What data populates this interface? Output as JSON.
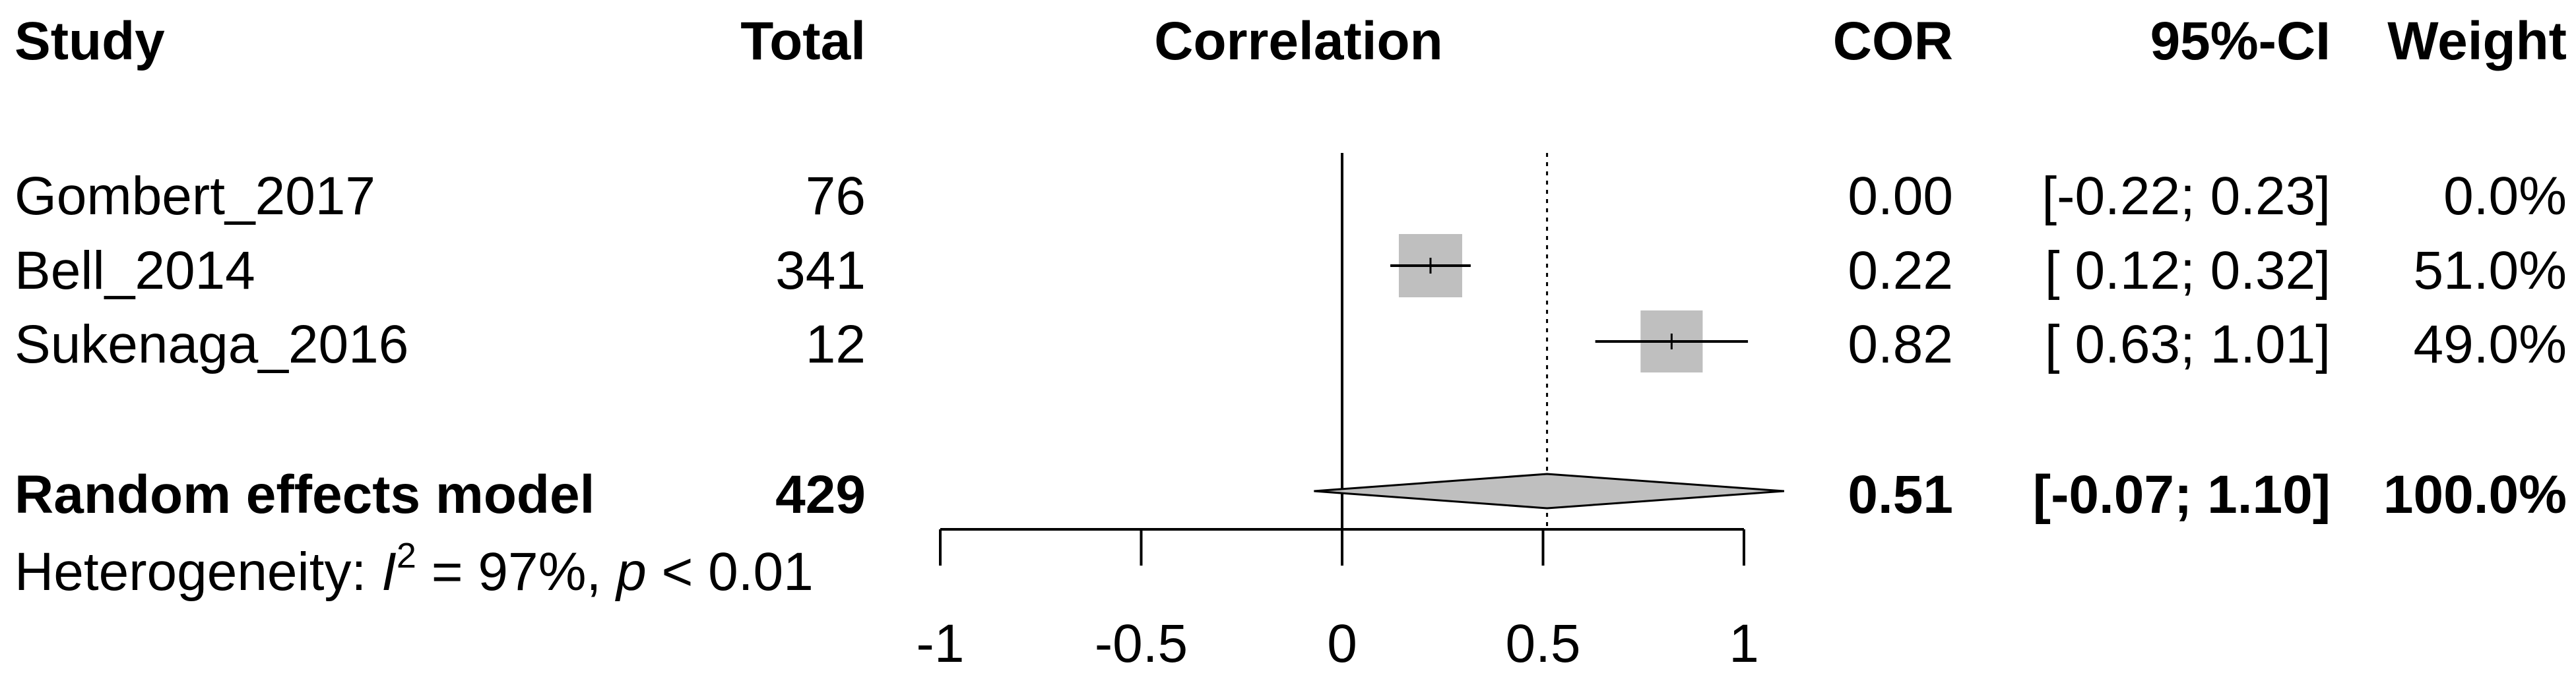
{
  "chart_data": {
    "type": "forest",
    "headers": {
      "study": "Study",
      "total": "Total",
      "effect": "Correlation",
      "estimate": "COR",
      "ci": "95%-CI",
      "weight": "Weight"
    },
    "studies": [
      {
        "name": "Gombert_2017",
        "total": "76",
        "cor": 0.0,
        "lower": -0.22,
        "upper": 0.23,
        "weight": 0.0,
        "cor_label": "0.00",
        "ci_label": "[-0.22; 0.23]",
        "weight_label": "0.0%"
      },
      {
        "name": "Bell_2014",
        "total": "341",
        "cor": 0.22,
        "lower": 0.12,
        "upper": 0.32,
        "weight": 51.0,
        "cor_label": "0.22",
        "ci_label": "[ 0.12; 0.32]",
        "weight_label": "51.0%"
      },
      {
        "name": "Sukenaga_2016",
        "total": "12",
        "cor": 0.82,
        "lower": 0.63,
        "upper": 1.01,
        "weight": 49.0,
        "cor_label": "0.82",
        "ci_label": "[ 0.63; 1.01]",
        "weight_label": "49.0%"
      }
    ],
    "pooled": {
      "name": "Random effects model",
      "total": "429",
      "cor": 0.51,
      "lower": -0.07,
      "upper": 1.1,
      "cor_label": "0.51",
      "ci_label": "[-0.07; 1.10]",
      "weight_label": "100.0%"
    },
    "heterogeneity": {
      "prefix": "Heterogeneity: ",
      "i2_symbol": "I",
      "i2_exponent": "2",
      "i2_text": " = 97%, ",
      "p_symbol": "p",
      "p_text": " < 0.01"
    },
    "xaxis": {
      "range": [
        -1,
        1
      ],
      "ticks": [
        -1,
        -0.5,
        0,
        0.5,
        1
      ],
      "tick_labels": [
        "-1",
        "-0.5",
        "0",
        "0.5",
        "1"
      ],
      "null_line": 0
    },
    "colors": {
      "square": "#bfbfbf",
      "diamond": "#bfbfbf",
      "line": "#000000"
    }
  }
}
